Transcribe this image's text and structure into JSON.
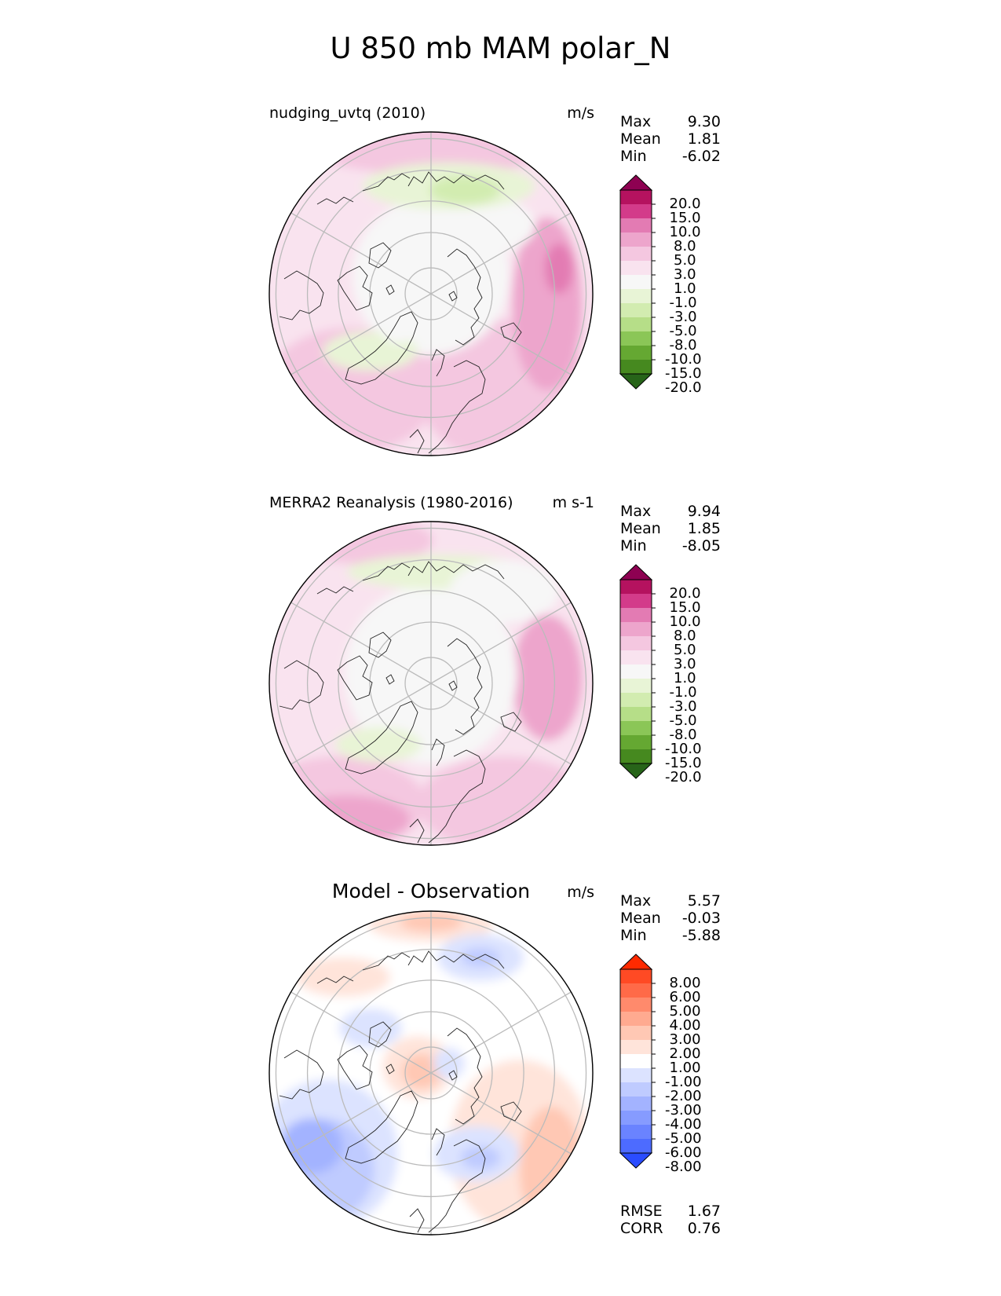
{
  "title": "U 850 mb MAM polar_N",
  "panels": [
    {
      "id": "model",
      "left_title": "nudging_uvtq (2010)",
      "right_title": "m/s",
      "stats": [
        {
          "label": "Max",
          "value": "9.30"
        },
        {
          "label": "Mean",
          "value": "1.81"
        },
        {
          "label": "Min",
          "value": "-6.02"
        }
      ],
      "colorbar": {
        "labels": [
          "20.0",
          "15.0",
          "10.0",
          "8.0",
          "5.0",
          "3.0",
          "1.0",
          "-1.0",
          "-3.0",
          "-5.0",
          "-8.0",
          "-10.0",
          "-15.0",
          "-20.0"
        ],
        "colors": [
          "#8e0152",
          "#b5125f",
          "#d33b8a",
          "#e37bb3",
          "#eda5cc",
          "#f4c7e0",
          "#f9e3ef",
          "#f7f7f7",
          "#e8f4d6",
          "#d2ecb0",
          "#b6de88",
          "#8bc657",
          "#65a832",
          "#46891f",
          "#276419"
        ]
      }
    },
    {
      "id": "obs",
      "left_title": "MERRA2 Reanalysis (1980-2016)",
      "right_title": "m s-1",
      "stats": [
        {
          "label": "Max",
          "value": "9.94"
        },
        {
          "label": "Mean",
          "value": "1.85"
        },
        {
          "label": "Min",
          "value": "-8.05"
        }
      ],
      "colorbar": {
        "labels": [
          "20.0",
          "15.0",
          "10.0",
          "8.0",
          "5.0",
          "3.0",
          "1.0",
          "-1.0",
          "-3.0",
          "-5.0",
          "-8.0",
          "-10.0",
          "-15.0",
          "-20.0"
        ],
        "colors": [
          "#8e0152",
          "#b5125f",
          "#d33b8a",
          "#e37bb3",
          "#eda5cc",
          "#f4c7e0",
          "#f9e3ef",
          "#f7f7f7",
          "#e8f4d6",
          "#d2ecb0",
          "#b6de88",
          "#8bc657",
          "#65a832",
          "#46891f",
          "#276419"
        ]
      }
    },
    {
      "id": "diff",
      "center_title": "Model - Observation",
      "right_title": "m/s",
      "stats": [
        {
          "label": "Max",
          "value": "5.57"
        },
        {
          "label": "Mean",
          "value": "-0.03"
        },
        {
          "label": "Min",
          "value": "-5.88"
        }
      ],
      "colorbar": {
        "labels": [
          "8.00",
          "6.00",
          "5.00",
          "4.00",
          "3.00",
          "2.00",
          "1.00",
          "-1.00",
          "-2.00",
          "-3.00",
          "-4.00",
          "-5.00",
          "-6.00",
          "-8.00"
        ],
        "colors": [
          "#ff2a00",
          "#ff4a24",
          "#ff6a48",
          "#ff8a6c",
          "#ffaa90",
          "#ffc8b4",
          "#ffe4da",
          "#ffffff",
          "#dce3ff",
          "#bfcbff",
          "#a3b3ff",
          "#869bff",
          "#6a83ff",
          "#4d6bff",
          "#2a4cff"
        ]
      },
      "metrics": [
        {
          "label": "RMSE",
          "value": "1.67"
        },
        {
          "label": "CORR",
          "value": "0.76"
        }
      ]
    }
  ]
}
